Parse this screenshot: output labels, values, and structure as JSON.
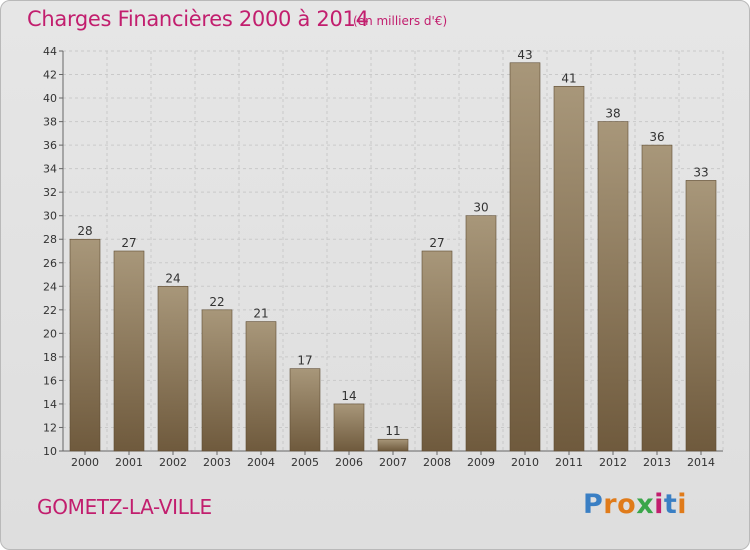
{
  "header": {
    "title": "Charges Financières 2000 à 2014",
    "subtitle": "(en milliers d'€)"
  },
  "footer": {
    "place": "GOMETZ-LA-VILLE",
    "logo": "Proxiti"
  },
  "colors": {
    "title": "#c21e6e",
    "bar_top": "#a8977a",
    "bar_bottom": "#6f5a3d",
    "grid": "#c9c9c9"
  },
  "chart_data": {
    "type": "bar",
    "title": "Charges Financières 2000 à 2014",
    "subtitle": "(en milliers d'€)",
    "xlabel": "",
    "ylabel": "",
    "categories": [
      "2000",
      "2001",
      "2002",
      "2003",
      "2004",
      "2005",
      "2006",
      "2007",
      "2008",
      "2009",
      "2010",
      "2011",
      "2012",
      "2013",
      "2014"
    ],
    "values": [
      28,
      27,
      24,
      22,
      21,
      17,
      14,
      11,
      27,
      30,
      43,
      41,
      38,
      36,
      33
    ],
    "ylim": [
      10,
      44
    ],
    "yticks": [
      10,
      12,
      14,
      16,
      18,
      20,
      22,
      24,
      26,
      28,
      30,
      32,
      34,
      36,
      38,
      40,
      42,
      44
    ],
    "grid": true,
    "legend": "none"
  }
}
